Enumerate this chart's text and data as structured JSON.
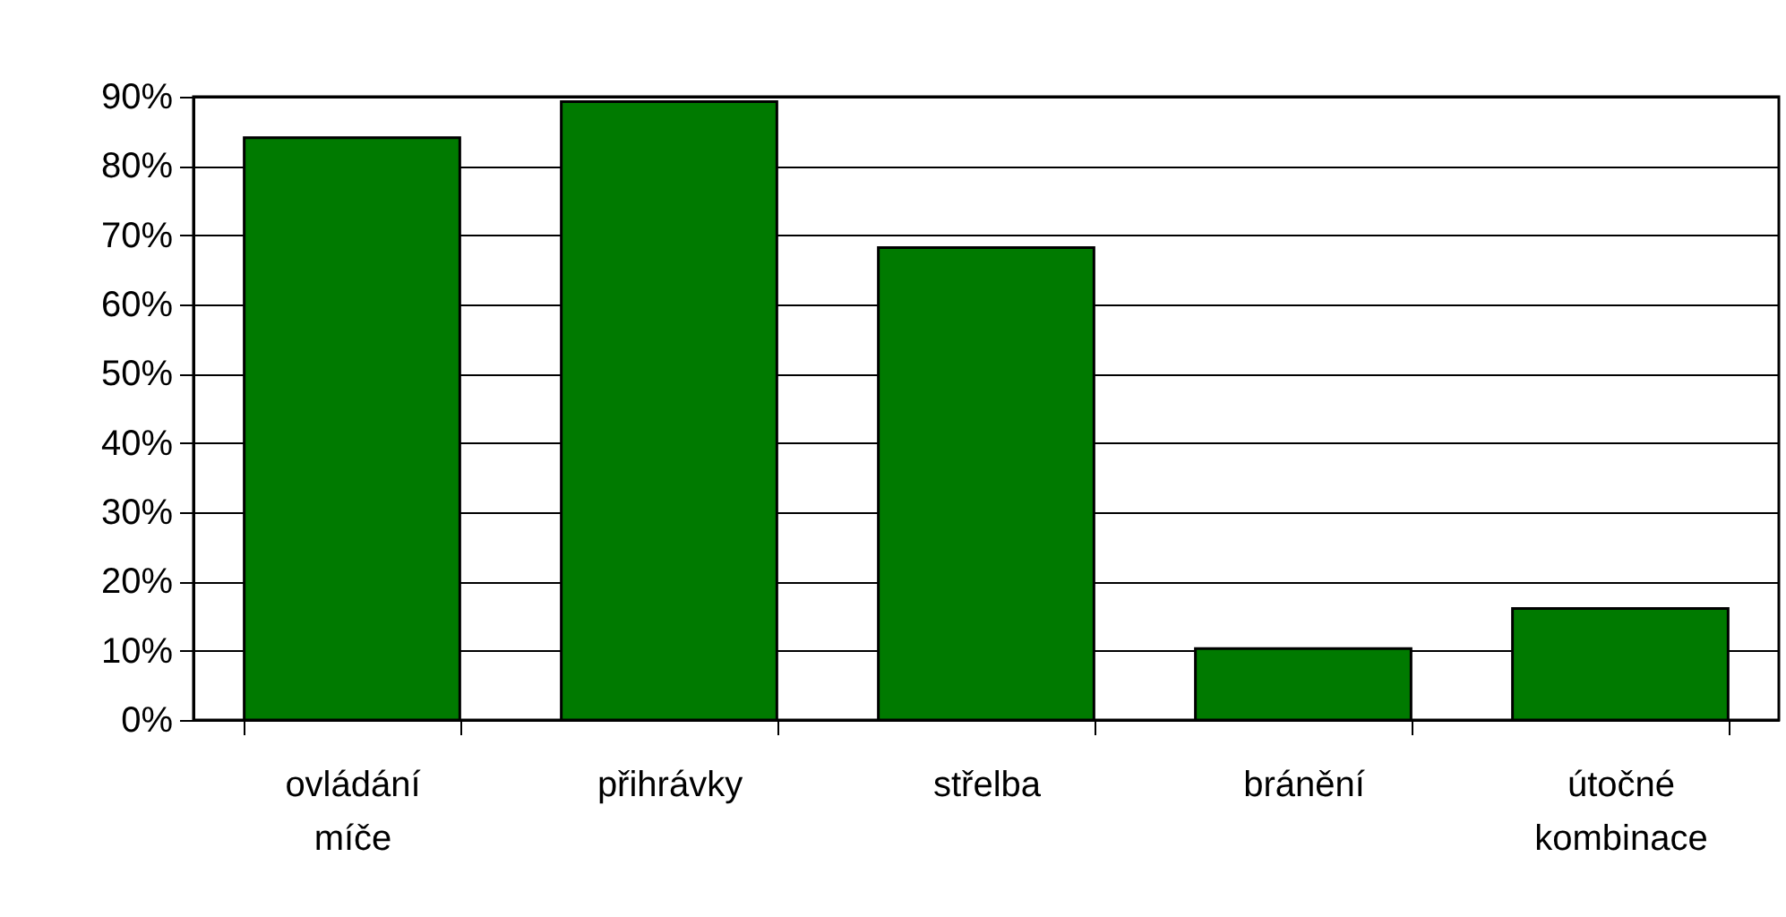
{
  "chart_data": {
    "type": "bar",
    "categories": [
      "ovládání míče",
      "přihrávky",
      "střelba",
      "bránění",
      "útočné kombinace"
    ],
    "values": [
      84.1,
      89.3,
      68.2,
      10.3,
      16.1
    ],
    "color": "#007a00",
    "ylim": [
      0,
      90
    ],
    "yticks": [
      {
        "value": 0,
        "label": "0%"
      },
      {
        "value": 10,
        "label": "10%"
      },
      {
        "value": 20,
        "label": "20%"
      },
      {
        "value": 30,
        "label": "30%"
      },
      {
        "value": 40,
        "label": "40%"
      },
      {
        "value": 50,
        "label": "50%"
      },
      {
        "value": 60,
        "label": "60%"
      },
      {
        "value": 70,
        "label": "70%"
      },
      {
        "value": 80,
        "label": "80%"
      },
      {
        "value": 90,
        "label": "90%"
      }
    ],
    "grid": "y"
  }
}
